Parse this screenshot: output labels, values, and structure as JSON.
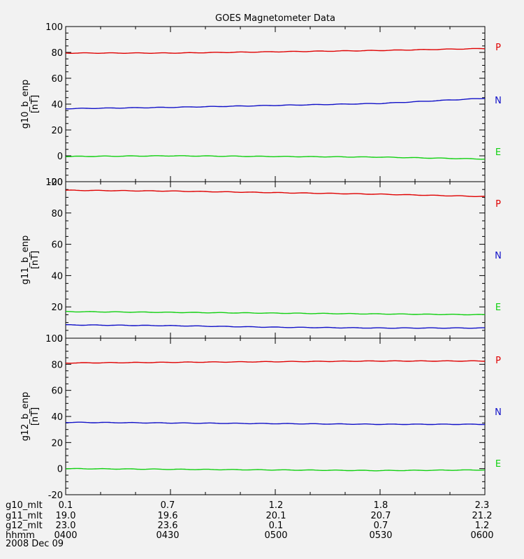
{
  "colors": {
    "P": "#e00000",
    "N": "#1010c8",
    "E": "#10d010"
  },
  "chart_data": {
    "type": "line",
    "title": "GOES Magnetometer Data",
    "x": [
      "0400",
      "0430",
      "0500",
      "0530",
      "0600"
    ],
    "date": "2008 Dec 09",
    "panels": [
      {
        "ylabel": "g10_b_enp",
        "unit": "[nT]",
        "ylim": [
          -20,
          100
        ],
        "yticks": [
          -20,
          0,
          20,
          40,
          60,
          80,
          100
        ],
        "legend": [
          "P",
          "N",
          "E"
        ],
        "series": [
          {
            "channel": "P",
            "color": "#e00000",
            "values": [
              79.5,
              79.5,
              80.5,
              81.5,
              83.0
            ]
          },
          {
            "channel": "N",
            "color": "#1010c8",
            "values": [
              36.5,
              37.5,
              39.0,
              40.5,
              44.5
            ]
          },
          {
            "channel": "E",
            "color": "#10d010",
            "values": [
              -0.5,
              0.0,
              -0.5,
              -1.0,
              -2.5
            ]
          }
        ]
      },
      {
        "ylabel": "g11_b_enp",
        "unit": "[nT]",
        "ylim": [
          0,
          100
        ],
        "yticks": [
          0,
          20,
          40,
          60,
          80,
          100
        ],
        "legend": [
          "P",
          "N",
          "E"
        ],
        "series": [
          {
            "channel": "P",
            "color": "#e00000",
            "values": [
              94.5,
              94.0,
              93.0,
              92.0,
              90.5
            ]
          },
          {
            "channel": "N",
            "color": "#1010c8",
            "values": [
              8.5,
              8.0,
              7.0,
              6.5,
              6.5
            ]
          },
          {
            "channel": "E",
            "color": "#10d010",
            "values": [
              17.0,
              16.5,
              16.0,
              15.5,
              15.0
            ]
          }
        ]
      },
      {
        "ylabel": "g12_b_enp",
        "unit": "[nT]",
        "ylim": [
          -20,
          100
        ],
        "yticks": [
          -20,
          0,
          20,
          40,
          60,
          80,
          100
        ],
        "legend": [
          "P",
          "N",
          "E"
        ],
        "series": [
          {
            "channel": "P",
            "color": "#e00000",
            "values": [
              81.0,
              81.5,
              82.0,
              82.5,
              82.5
            ]
          },
          {
            "channel": "N",
            "color": "#1010c8",
            "values": [
              35.5,
              35.0,
              34.5,
              34.0,
              34.0
            ]
          },
          {
            "channel": "E",
            "color": "#10d010",
            "values": [
              0.0,
              -0.5,
              -1.0,
              -1.5,
              -1.0
            ]
          }
        ]
      }
    ],
    "footer_rows": [
      {
        "label": "g10_mlt",
        "values": [
          "0.1",
          "0.7",
          "1.2",
          "1.8",
          "2.3"
        ]
      },
      {
        "label": "g11_mlt",
        "values": [
          "19.0",
          "19.6",
          "20.1",
          "20.7",
          "21.2"
        ]
      },
      {
        "label": "g12_mlt",
        "values": [
          "23.0",
          "23.6",
          "0.1",
          "0.7",
          "1.2"
        ]
      },
      {
        "label": "hhmm",
        "values": [
          "0400",
          "0430",
          "0500",
          "0530",
          "0600"
        ]
      }
    ]
  }
}
